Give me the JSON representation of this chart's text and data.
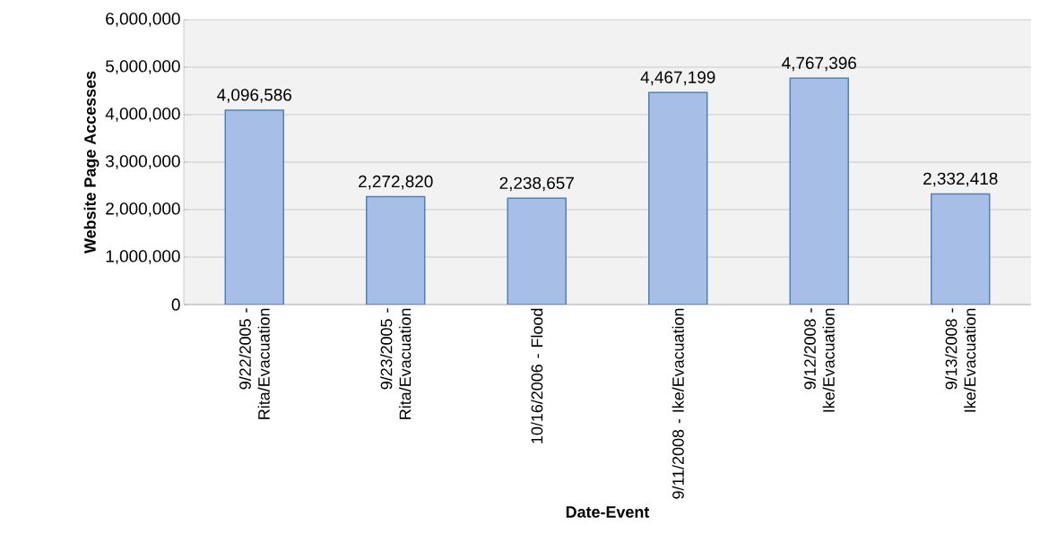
{
  "chart_data": {
    "type": "bar",
    "xlabel": "Date-Event",
    "ylabel": "Website Page Accesses",
    "categories": [
      "9/22/2005 - Rita/Evacuation",
      "9/23/2005 - Rita/Evacuation",
      "10/16/2006 - Flood",
      "9/11/2008 - Ike/Evacuation",
      "9/12/2008 - Ike/Evacuation",
      "9/13/2008 - Ike/Evacuation"
    ],
    "values": [
      4096586,
      2272820,
      2238657,
      4467199,
      4767396,
      2332418
    ],
    "value_labels": [
      "4,096,586",
      "2,272,820",
      "2,238,657",
      "4,467,199",
      "4,767,396",
      "2,332,418"
    ],
    "color": "#a7bfe6",
    "ylim": [
      0,
      6000000
    ],
    "yticks": [
      0,
      {
        "value": 1000000,
        "label": "1,000,000"
      },
      {
        "value": 2000000,
        "label": "2,000,000"
      },
      {
        "value": 3000000,
        "label": "3,000,000"
      },
      {
        "value": 4000000,
        "label": "4,000,000"
      },
      {
        "value": 5000000,
        "label": "5,000,000"
      },
      {
        "value": 6000000,
        "label": "6,000,000"
      }
    ],
    "grid": "y"
  }
}
